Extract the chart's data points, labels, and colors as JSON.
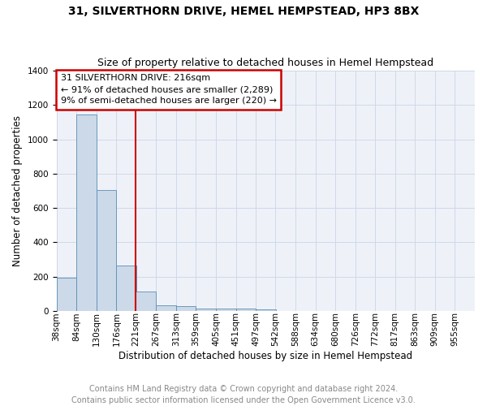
{
  "title": "31, SILVERTHORN DRIVE, HEMEL HEMPSTEAD, HP3 8BX",
  "subtitle": "Size of property relative to detached houses in Hemel Hempstead",
  "xlabel": "Distribution of detached houses by size in Hemel Hempstead",
  "ylabel": "Number of detached properties",
  "footnote": "Contains HM Land Registry data © Crown copyright and database right 2024.\nContains public sector information licensed under the Open Government Licence v3.0.",
  "annotation_title": "31 SILVERTHORN DRIVE: 216sqm",
  "annotation_line1": "← 91% of detached houses are smaller (2,289)",
  "annotation_line2": "9% of semi-detached houses are larger (220) →",
  "bin_labels": [
    "38sqm",
    "84sqm",
    "130sqm",
    "176sqm",
    "221sqm",
    "267sqm",
    "313sqm",
    "359sqm",
    "405sqm",
    "451sqm",
    "497sqm",
    "542sqm",
    "588sqm",
    "634sqm",
    "680sqm",
    "726sqm",
    "772sqm",
    "817sqm",
    "863sqm",
    "909sqm",
    "955sqm"
  ],
  "bin_edges": [
    38,
    84,
    130,
    176,
    221,
    267,
    313,
    359,
    405,
    451,
    497,
    542,
    588,
    634,
    680,
    726,
    772,
    817,
    863,
    909,
    955
  ],
  "bar_heights": [
    195,
    1145,
    705,
    265,
    115,
    35,
    27,
    15,
    12,
    12,
    10,
    0,
    0,
    0,
    0,
    0,
    0,
    0,
    0,
    0
  ],
  "bar_color": "#ccd9e8",
  "bar_edge_color": "#5b8db8",
  "vline_color": "#cc0000",
  "vline_x": 221,
  "annotation_box_color": "#cc0000",
  "ylim": [
    0,
    1400
  ],
  "yticks": [
    0,
    200,
    400,
    600,
    800,
    1000,
    1200,
    1400
  ],
  "grid_color": "#d0d8e8",
  "bg_color": "#eef2f8",
  "title_fontsize": 10,
  "subtitle_fontsize": 9,
  "axis_label_fontsize": 8.5,
  "tick_fontsize": 7.5,
  "annotation_fontsize": 8,
  "footnote_fontsize": 7
}
